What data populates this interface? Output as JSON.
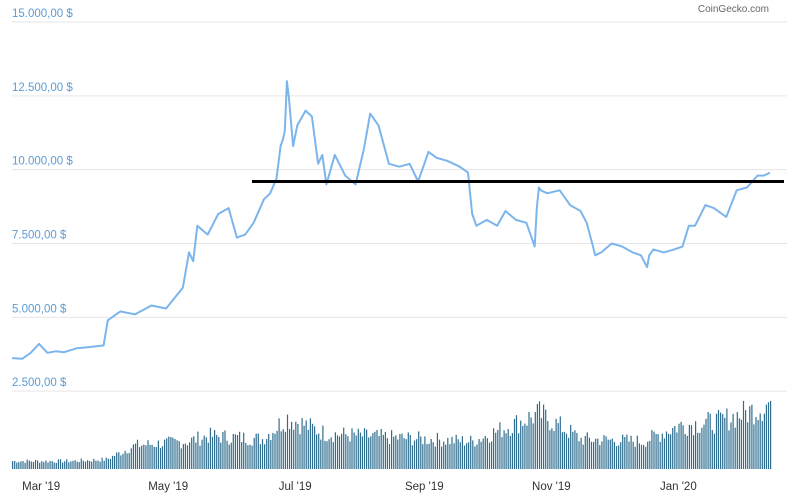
{
  "credit": "CoinGecko.com",
  "chart_data": {
    "type": "line",
    "title": "",
    "xlabel": "",
    "ylabel": "",
    "ylim": [
      0,
      15000
    ],
    "y_ticks": [
      "2.500,00 $",
      "5.000,00 $",
      "7.500,00 $",
      "10.000,00 $",
      "12.500,00 $",
      "15.000,00 $"
    ],
    "y_tick_values": [
      2500,
      5000,
      7500,
      10000,
      12500,
      15000
    ],
    "x_ticks": [
      "Mar '19",
      "May '19",
      "Jul '19",
      "Sep '19",
      "Nov '19",
      "Jan '20"
    ],
    "x_tick_dates": [
      "2019-03-01",
      "2019-05-01",
      "2019-07-01",
      "2019-09-01",
      "2019-11-01",
      "2020-01-01"
    ],
    "x_range": [
      "2019-02-15",
      "2020-02-14"
    ],
    "grid": true,
    "line_color": "#7cb5ec",
    "volume_color": "#2f6e8f",
    "price_series": {
      "x": [
        "2019-02-15",
        "2019-02-20",
        "2019-02-24",
        "2019-02-28",
        "2019-03-04",
        "2019-03-08",
        "2019-03-12",
        "2019-03-18",
        "2019-03-25",
        "2019-03-31",
        "2019-04-02",
        "2019-04-08",
        "2019-04-15",
        "2019-04-23",
        "2019-04-30",
        "2019-05-08",
        "2019-05-11",
        "2019-05-13",
        "2019-05-15",
        "2019-05-20",
        "2019-05-25",
        "2019-05-30",
        "2019-06-03",
        "2019-06-07",
        "2019-06-11",
        "2019-06-16",
        "2019-06-19",
        "2019-06-22",
        "2019-06-24",
        "2019-06-25",
        "2019-06-26",
        "2019-06-27",
        "2019-06-28",
        "2019-06-30",
        "2019-07-02",
        "2019-07-06",
        "2019-07-09",
        "2019-07-12",
        "2019-07-14",
        "2019-07-16",
        "2019-07-20",
        "2019-07-25",
        "2019-07-30",
        "2019-08-03",
        "2019-08-06",
        "2019-08-10",
        "2019-08-15",
        "2019-08-20",
        "2019-08-25",
        "2019-08-29",
        "2019-09-03",
        "2019-09-07",
        "2019-09-12",
        "2019-09-18",
        "2019-09-22",
        "2019-09-24",
        "2019-09-26",
        "2019-10-01",
        "2019-10-06",
        "2019-10-10",
        "2019-10-15",
        "2019-10-20",
        "2019-10-24",
        "2019-10-25",
        "2019-10-26",
        "2019-10-27",
        "2019-10-30",
        "2019-11-05",
        "2019-11-10",
        "2019-11-15",
        "2019-11-18",
        "2019-11-21",
        "2019-11-22",
        "2019-11-25",
        "2019-11-30",
        "2019-12-05",
        "2019-12-10",
        "2019-12-14",
        "2019-12-17",
        "2019-12-18",
        "2019-12-20",
        "2019-12-25",
        "2019-12-30",
        "2020-01-03",
        "2020-01-06",
        "2020-01-09",
        "2020-01-14",
        "2020-01-18",
        "2020-01-24",
        "2020-01-29",
        "2020-02-03",
        "2020-02-08",
        "2020-02-11",
        "2020-02-14"
      ],
      "values": [
        3620,
        3600,
        3800,
        4100,
        3800,
        3850,
        3820,
        3950,
        4000,
        4050,
        4900,
        5200,
        5100,
        5400,
        5300,
        6000,
        7200,
        6900,
        8100,
        7800,
        8500,
        8700,
        7700,
        7800,
        8200,
        9000,
        9200,
        9700,
        10800,
        11000,
        11300,
        13000,
        12400,
        10800,
        11500,
        12000,
        11800,
        10200,
        10500,
        9500,
        10500,
        9800,
        9500,
        10700,
        11900,
        11500,
        10200,
        10100,
        10200,
        9600,
        10600,
        10400,
        10300,
        10100,
        9900,
        8500,
        8100,
        8300,
        8100,
        8600,
        8300,
        8200,
        7400,
        8700,
        9400,
        9300,
        9200,
        9300,
        8800,
        8600,
        8200,
        7400,
        7100,
        7200,
        7500,
        7400,
        7200,
        7100,
        6700,
        7100,
        7300,
        7200,
        7300,
        7400,
        8100,
        8100,
        8800,
        8700,
        8400,
        9300,
        9400,
        9800,
        9800,
        9900
      ]
    },
    "resistance_level": 9600,
    "volume": {
      "note": "relative volume, 0-1 scale",
      "x": [
        "2019-02-15",
        "2019-03-15",
        "2019-04-01",
        "2019-04-15",
        "2019-05-10",
        "2019-05-20",
        "2019-06-15",
        "2019-06-27",
        "2019-07-15",
        "2019-08-15",
        "2019-09-24",
        "2019-10-26",
        "2019-11-15",
        "2019-12-15",
        "2020-01-01",
        "2020-01-20",
        "2020-02-10",
        "2020-02-14"
      ],
      "values": [
        0.1,
        0.1,
        0.12,
        0.3,
        0.35,
        0.42,
        0.38,
        0.65,
        0.45,
        0.4,
        0.35,
        0.7,
        0.38,
        0.35,
        0.55,
        0.6,
        0.78,
        0.85
      ]
    }
  }
}
